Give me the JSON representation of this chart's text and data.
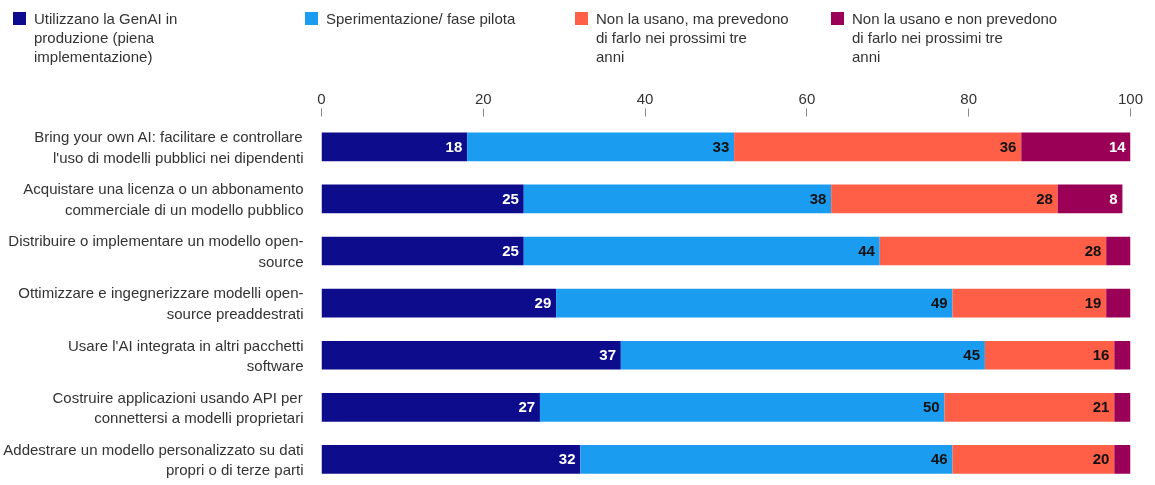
{
  "chart_data": {
    "type": "bar",
    "orientation": "horizontal",
    "stacked": true,
    "legend": "top",
    "grid": false,
    "categories": [
      "Bring your own AI: facilitare e controllare l'uso di modelli pubblici nei dipendenti",
      "Acquistare una licenza o un abbonamento commerciale di un modello pubblico",
      "Distribuire o implementare un modello open-source",
      "Ottimizzare e ingegnerizzare modelli open-source preaddestrati",
      "Usare l'AI integrata in altri pacchetti software",
      "Costruire applicazioni usando API per connettersi a modelli proprietari",
      "Addestrare un modello personalizzato su dati propri o di terze parti"
    ],
    "xlim": [
      0,
      100
    ],
    "xticks": [
      0,
      20,
      40,
      60,
      80,
      100
    ],
    "series": [
      {
        "name": "Utilizzano la GenAI in produzione (piena implementazione)",
        "color": "#0c0c8c",
        "values": [
          18,
          25,
          25,
          29,
          37,
          27,
          32
        ],
        "value_labels": [
          "18",
          "25",
          "25",
          "29",
          "37",
          "27",
          "32"
        ]
      },
      {
        "name": "Sperimentazione/ fase pilota",
        "color": "#1a9cf0",
        "values": [
          33,
          38,
          44,
          49,
          45,
          50,
          46
        ],
        "value_labels": [
          "33",
          "38",
          "44",
          "49",
          "45",
          "50",
          "46"
        ]
      },
      {
        "name": "Non la usano, ma prevedono di farlo nei prossimi tre anni",
        "color": "#ff5f47",
        "values": [
          35.5,
          28,
          28,
          19,
          16,
          21,
          20
        ],
        "value_labels": [
          "36",
          "28",
          "28",
          "19",
          "16",
          "21",
          "20"
        ]
      },
      {
        "name": "Non la usano e non prevedono di farlo nei prossimi tre anni",
        "color": "#9b0057",
        "values": [
          13.5,
          8,
          3,
          3,
          2,
          2,
          2
        ],
        "value_labels": [
          "14",
          "8",
          null,
          null,
          null,
          null,
          null
        ]
      }
    ]
  }
}
